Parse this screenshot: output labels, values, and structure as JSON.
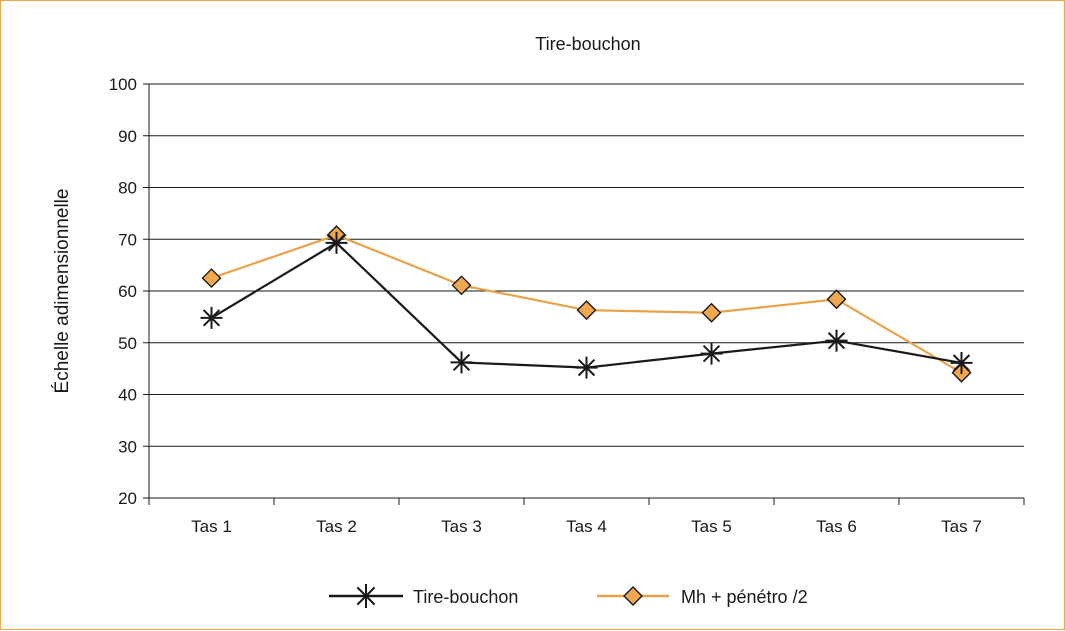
{
  "chart_data": {
    "type": "line",
    "title": "Tire-bouchon",
    "xlabel": "",
    "ylabel": "Échelle adimensionnelle",
    "categories": [
      "Tas 1",
      "Tas 2",
      "Tas 3",
      "Tas 4",
      "Tas 5",
      "Tas 6",
      "Tas 7"
    ],
    "ylim": [
      20,
      100
    ],
    "yticks": [
      20,
      30,
      40,
      50,
      60,
      70,
      80,
      90,
      100
    ],
    "grid": true,
    "legend_position": "bottom",
    "series": [
      {
        "name": "Tire-bouchon",
        "values": [
          54.8,
          69.3,
          46.2,
          45.2,
          47.9,
          50.4,
          46.1
        ],
        "color": "#1a1a1a",
        "marker": "asterisk-icon"
      },
      {
        "name": "Mh + pénétro /2",
        "values": [
          62.5,
          70.8,
          61.1,
          56.3,
          55.8,
          58.4,
          44.2
        ],
        "color": "#e8a24a",
        "marker": "diamond-icon",
        "marker_fill": "#f0a850"
      }
    ]
  }
}
